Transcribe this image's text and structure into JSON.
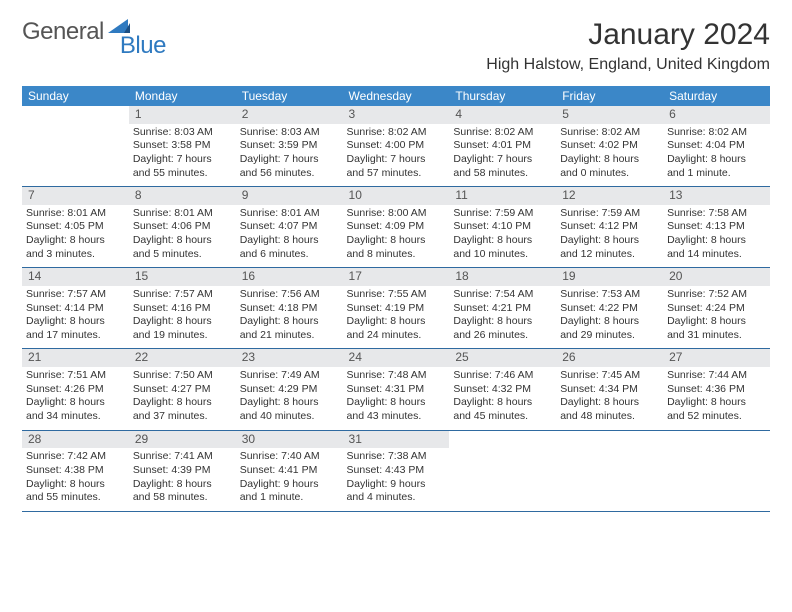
{
  "brand": {
    "part1": "General",
    "part2": "Blue"
  },
  "title": "January 2024",
  "location": "High Halstow, England, United Kingdom",
  "colors": {
    "header_bg": "#3b87c8",
    "header_fg": "#ffffff",
    "daynum_bg": "#e7e8ea",
    "divider": "#2f6aa0",
    "text": "#333333",
    "logo_gray": "#555555",
    "logo_blue": "#2f7ac0"
  },
  "typography": {
    "title_fontsize": 30,
    "location_fontsize": 16,
    "dayheader_fontsize": 12,
    "cell_fontsize": 10.5
  },
  "day_headers": [
    "Sunday",
    "Monday",
    "Tuesday",
    "Wednesday",
    "Thursday",
    "Friday",
    "Saturday"
  ],
  "weeks": [
    {
      "nums": [
        "",
        "1",
        "2",
        "3",
        "4",
        "5",
        "6"
      ],
      "cells": [
        {
          "sunrise": "",
          "sunset": "",
          "daylight": ""
        },
        {
          "sunrise": "Sunrise: 8:03 AM",
          "sunset": "Sunset: 3:58 PM",
          "daylight": "Daylight: 7 hours and 55 minutes."
        },
        {
          "sunrise": "Sunrise: 8:03 AM",
          "sunset": "Sunset: 3:59 PM",
          "daylight": "Daylight: 7 hours and 56 minutes."
        },
        {
          "sunrise": "Sunrise: 8:02 AM",
          "sunset": "Sunset: 4:00 PM",
          "daylight": "Daylight: 7 hours and 57 minutes."
        },
        {
          "sunrise": "Sunrise: 8:02 AM",
          "sunset": "Sunset: 4:01 PM",
          "daylight": "Daylight: 7 hours and 58 minutes."
        },
        {
          "sunrise": "Sunrise: 8:02 AM",
          "sunset": "Sunset: 4:02 PM",
          "daylight": "Daylight: 8 hours and 0 minutes."
        },
        {
          "sunrise": "Sunrise: 8:02 AM",
          "sunset": "Sunset: 4:04 PM",
          "daylight": "Daylight: 8 hours and 1 minute."
        }
      ]
    },
    {
      "nums": [
        "7",
        "8",
        "9",
        "10",
        "11",
        "12",
        "13"
      ],
      "cells": [
        {
          "sunrise": "Sunrise: 8:01 AM",
          "sunset": "Sunset: 4:05 PM",
          "daylight": "Daylight: 8 hours and 3 minutes."
        },
        {
          "sunrise": "Sunrise: 8:01 AM",
          "sunset": "Sunset: 4:06 PM",
          "daylight": "Daylight: 8 hours and 5 minutes."
        },
        {
          "sunrise": "Sunrise: 8:01 AM",
          "sunset": "Sunset: 4:07 PM",
          "daylight": "Daylight: 8 hours and 6 minutes."
        },
        {
          "sunrise": "Sunrise: 8:00 AM",
          "sunset": "Sunset: 4:09 PM",
          "daylight": "Daylight: 8 hours and 8 minutes."
        },
        {
          "sunrise": "Sunrise: 7:59 AM",
          "sunset": "Sunset: 4:10 PM",
          "daylight": "Daylight: 8 hours and 10 minutes."
        },
        {
          "sunrise": "Sunrise: 7:59 AM",
          "sunset": "Sunset: 4:12 PM",
          "daylight": "Daylight: 8 hours and 12 minutes."
        },
        {
          "sunrise": "Sunrise: 7:58 AM",
          "sunset": "Sunset: 4:13 PM",
          "daylight": "Daylight: 8 hours and 14 minutes."
        }
      ]
    },
    {
      "nums": [
        "14",
        "15",
        "16",
        "17",
        "18",
        "19",
        "20"
      ],
      "cells": [
        {
          "sunrise": "Sunrise: 7:57 AM",
          "sunset": "Sunset: 4:14 PM",
          "daylight": "Daylight: 8 hours and 17 minutes."
        },
        {
          "sunrise": "Sunrise: 7:57 AM",
          "sunset": "Sunset: 4:16 PM",
          "daylight": "Daylight: 8 hours and 19 minutes."
        },
        {
          "sunrise": "Sunrise: 7:56 AM",
          "sunset": "Sunset: 4:18 PM",
          "daylight": "Daylight: 8 hours and 21 minutes."
        },
        {
          "sunrise": "Sunrise: 7:55 AM",
          "sunset": "Sunset: 4:19 PM",
          "daylight": "Daylight: 8 hours and 24 minutes."
        },
        {
          "sunrise": "Sunrise: 7:54 AM",
          "sunset": "Sunset: 4:21 PM",
          "daylight": "Daylight: 8 hours and 26 minutes."
        },
        {
          "sunrise": "Sunrise: 7:53 AM",
          "sunset": "Sunset: 4:22 PM",
          "daylight": "Daylight: 8 hours and 29 minutes."
        },
        {
          "sunrise": "Sunrise: 7:52 AM",
          "sunset": "Sunset: 4:24 PM",
          "daylight": "Daylight: 8 hours and 31 minutes."
        }
      ]
    },
    {
      "nums": [
        "21",
        "22",
        "23",
        "24",
        "25",
        "26",
        "27"
      ],
      "cells": [
        {
          "sunrise": "Sunrise: 7:51 AM",
          "sunset": "Sunset: 4:26 PM",
          "daylight": "Daylight: 8 hours and 34 minutes."
        },
        {
          "sunrise": "Sunrise: 7:50 AM",
          "sunset": "Sunset: 4:27 PM",
          "daylight": "Daylight: 8 hours and 37 minutes."
        },
        {
          "sunrise": "Sunrise: 7:49 AM",
          "sunset": "Sunset: 4:29 PM",
          "daylight": "Daylight: 8 hours and 40 minutes."
        },
        {
          "sunrise": "Sunrise: 7:48 AM",
          "sunset": "Sunset: 4:31 PM",
          "daylight": "Daylight: 8 hours and 43 minutes."
        },
        {
          "sunrise": "Sunrise: 7:46 AM",
          "sunset": "Sunset: 4:32 PM",
          "daylight": "Daylight: 8 hours and 45 minutes."
        },
        {
          "sunrise": "Sunrise: 7:45 AM",
          "sunset": "Sunset: 4:34 PM",
          "daylight": "Daylight: 8 hours and 48 minutes."
        },
        {
          "sunrise": "Sunrise: 7:44 AM",
          "sunset": "Sunset: 4:36 PM",
          "daylight": "Daylight: 8 hours and 52 minutes."
        }
      ]
    },
    {
      "nums": [
        "28",
        "29",
        "30",
        "31",
        "",
        "",
        ""
      ],
      "cells": [
        {
          "sunrise": "Sunrise: 7:42 AM",
          "sunset": "Sunset: 4:38 PM",
          "daylight": "Daylight: 8 hours and 55 minutes."
        },
        {
          "sunrise": "Sunrise: 7:41 AM",
          "sunset": "Sunset: 4:39 PM",
          "daylight": "Daylight: 8 hours and 58 minutes."
        },
        {
          "sunrise": "Sunrise: 7:40 AM",
          "sunset": "Sunset: 4:41 PM",
          "daylight": "Daylight: 9 hours and 1 minute."
        },
        {
          "sunrise": "Sunrise: 7:38 AM",
          "sunset": "Sunset: 4:43 PM",
          "daylight": "Daylight: 9 hours and 4 minutes."
        },
        {
          "sunrise": "",
          "sunset": "",
          "daylight": ""
        },
        {
          "sunrise": "",
          "sunset": "",
          "daylight": ""
        },
        {
          "sunrise": "",
          "sunset": "",
          "daylight": ""
        }
      ]
    }
  ]
}
